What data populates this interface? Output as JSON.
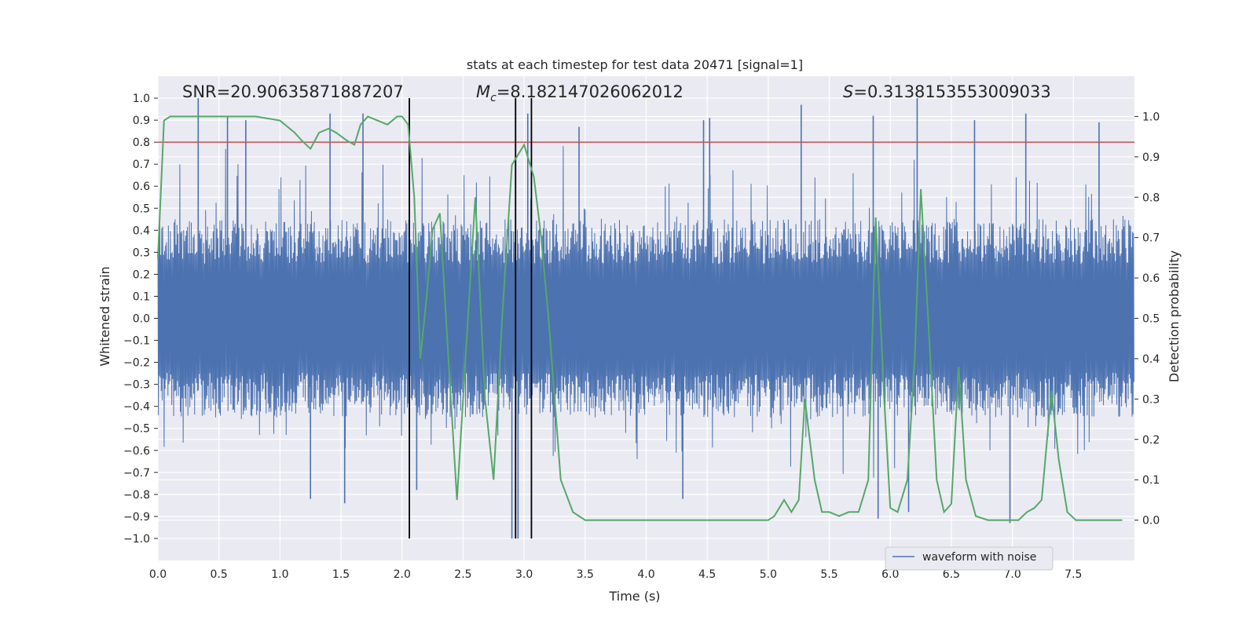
{
  "chart_data": {
    "type": "line",
    "title": "stats at each timestep for test data 20471 [signal=1]",
    "xlabel": "Time (s)",
    "ylabel": "Whitened strain",
    "y2label": "Detection probability",
    "xlim": [
      0.0,
      8.0
    ],
    "ylim": [
      -1.1,
      1.1
    ],
    "y2lim": [
      -0.1,
      1.1
    ],
    "x_ticks": [
      0.0,
      0.5,
      1.0,
      1.5,
      2.0,
      2.5,
      3.0,
      3.5,
      4.0,
      4.5,
      5.0,
      5.5,
      6.0,
      6.5,
      7.0,
      7.5
    ],
    "x_tick_labels": [
      "0.0",
      "0.5",
      "1.0",
      "1.5",
      "2.0",
      "2.5",
      "3.0",
      "3.5",
      "4.0",
      "4.5",
      "5.0",
      "5.5",
      "6.0",
      "6.5",
      "7.0",
      "7.5"
    ],
    "y_ticks": [
      -1.0,
      -0.9,
      -0.8,
      -0.7,
      -0.6,
      -0.5,
      -0.4,
      -0.3,
      -0.2,
      -0.1,
      0.0,
      0.1,
      0.2,
      0.3,
      0.4,
      0.5,
      0.6,
      0.7,
      0.8,
      0.9,
      1.0
    ],
    "y_tick_labels": [
      "−1.0",
      "−0.9",
      "−0.8",
      "−0.7",
      "−0.6",
      "−0.5",
      "−0.4",
      "−0.3",
      "−0.2",
      "−0.1",
      "0.0",
      "0.1",
      "0.2",
      "0.3",
      "0.4",
      "0.5",
      "0.6",
      "0.7",
      "0.8",
      "0.9",
      "1.0"
    ],
    "y2_ticks": [
      0.0,
      0.1,
      0.2,
      0.3,
      0.4,
      0.5,
      0.6,
      0.7,
      0.8,
      0.9,
      1.0
    ],
    "y2_tick_labels": [
      "0.0",
      "0.1",
      "0.2",
      "0.3",
      "0.4",
      "0.5",
      "0.6",
      "0.7",
      "0.8",
      "0.9",
      "1.0"
    ],
    "threshold": {
      "value": 0.8,
      "axis": "left",
      "color": "#c44e52"
    },
    "vlines": [
      2.06,
      2.93,
      3.06
    ],
    "annotations": {
      "snr_text": "SNR=20.90635871887207",
      "mc_symbol": "M",
      "mc_subscript": "c",
      "mc_value": "=8.182147026062012",
      "s_symbol": "S",
      "s_value": "=0.3138153553009033"
    },
    "legend": {
      "label": "waveform with noise",
      "placement": "lower-right"
    },
    "strain_series": {
      "name": "waveform with noise",
      "color": "#4c72b0",
      "n_samples": 2048,
      "typical_envelope": [
        -0.45,
        0.45
      ],
      "peaks": [
        {
          "t": 0.33,
          "v": 1.0
        },
        {
          "t": 0.57,
          "v": 0.92
        },
        {
          "t": 0.72,
          "v": 0.9
        },
        {
          "t": 1.41,
          "v": 0.93
        },
        {
          "t": 1.68,
          "v": 0.93
        },
        {
          "t": 2.06,
          "v": 1.0
        },
        {
          "t": 2.93,
          "v": 1.0
        },
        {
          "t": 3.03,
          "v": 0.93
        },
        {
          "t": 3.45,
          "v": 0.87
        },
        {
          "t": 4.47,
          "v": 0.9
        },
        {
          "t": 4.52,
          "v": 0.91
        },
        {
          "t": 5.27,
          "v": 0.97
        },
        {
          "t": 5.86,
          "v": 0.92
        },
        {
          "t": 6.22,
          "v": 1.0
        },
        {
          "t": 6.69,
          "v": 0.9
        },
        {
          "t": 7.11,
          "v": 0.93
        },
        {
          "t": 7.71,
          "v": 0.89
        },
        {
          "t": 1.25,
          "v": -0.82
        },
        {
          "t": 1.53,
          "v": -0.84
        },
        {
          "t": 2.12,
          "v": -0.78
        },
        {
          "t": 2.9,
          "v": -1.0
        },
        {
          "t": 2.95,
          "v": -1.0
        },
        {
          "t": 4.3,
          "v": -0.82
        },
        {
          "t": 5.9,
          "v": -0.91
        },
        {
          "t": 6.15,
          "v": -0.88
        },
        {
          "t": 6.98,
          "v": -0.93
        }
      ]
    },
    "probability_series": {
      "name": "detection probability",
      "axis": "right",
      "color": "#55a868",
      "x": [
        0.0,
        0.05,
        0.1,
        0.2,
        0.4,
        0.6,
        0.8,
        1.0,
        1.12,
        1.18,
        1.25,
        1.32,
        1.4,
        1.46,
        1.55,
        1.61,
        1.66,
        1.72,
        1.8,
        1.88,
        1.96,
        2.0,
        2.05,
        2.1,
        2.15,
        2.2,
        2.25,
        2.31,
        2.38,
        2.45,
        2.53,
        2.6,
        2.68,
        2.75,
        2.82,
        2.9,
        3.0,
        3.08,
        3.14,
        3.2,
        3.3,
        3.4,
        3.5,
        3.8,
        4.1,
        4.3,
        4.6,
        4.8,
        5.0,
        5.05,
        5.13,
        5.19,
        5.25,
        5.3,
        5.38,
        5.44,
        5.5,
        5.58,
        5.66,
        5.74,
        5.82,
        5.88,
        5.95,
        6.0,
        6.06,
        6.14,
        6.2,
        6.25,
        6.31,
        6.38,
        6.44,
        6.5,
        6.56,
        6.62,
        6.7,
        6.8,
        6.9,
        6.98,
        7.05,
        7.12,
        7.18,
        7.24,
        7.32,
        7.38,
        7.45,
        7.52,
        7.6,
        7.75,
        7.9
      ],
      "y": [
        0.65,
        0.99,
        1.0,
        1.0,
        1.0,
        1.0,
        1.0,
        0.99,
        0.96,
        0.94,
        0.92,
        0.96,
        0.97,
        0.96,
        0.94,
        0.93,
        0.98,
        1.0,
        0.99,
        0.98,
        1.0,
        1.0,
        0.98,
        0.8,
        0.4,
        0.55,
        0.72,
        0.76,
        0.4,
        0.05,
        0.45,
        0.8,
        0.3,
        0.1,
        0.5,
        0.88,
        0.93,
        0.85,
        0.7,
        0.5,
        0.1,
        0.02,
        0.0,
        0.0,
        0.0,
        0.0,
        0.0,
        0.0,
        0.0,
        0.01,
        0.05,
        0.02,
        0.05,
        0.3,
        0.1,
        0.02,
        0.02,
        0.01,
        0.02,
        0.02,
        0.1,
        0.75,
        0.3,
        0.03,
        0.02,
        0.1,
        0.4,
        0.82,
        0.5,
        0.1,
        0.02,
        0.04,
        0.38,
        0.1,
        0.01,
        0.0,
        0.0,
        0.0,
        0.0,
        0.02,
        0.03,
        0.05,
        0.32,
        0.15,
        0.02,
        0.0,
        0.0,
        0.0,
        0.0
      ]
    }
  }
}
